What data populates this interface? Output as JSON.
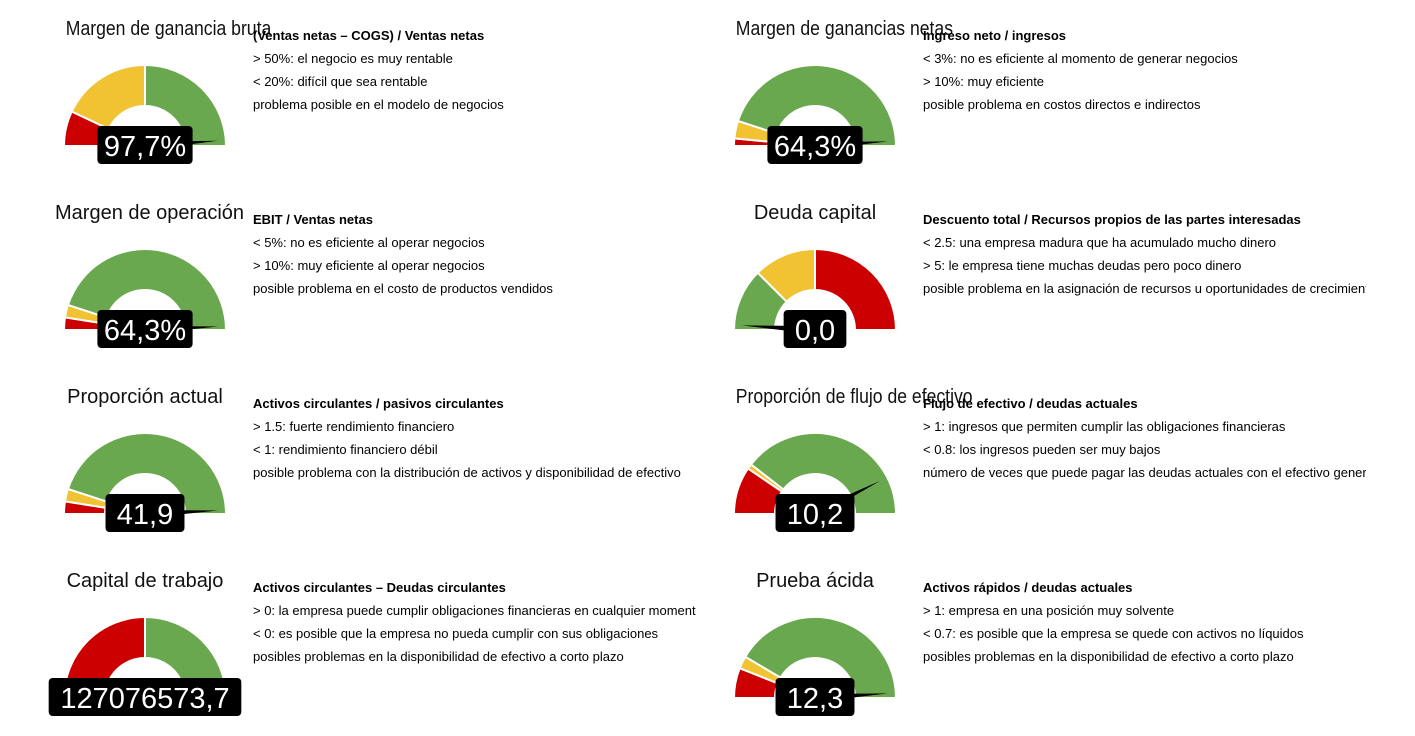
{
  "colors": {
    "green": "#6aa84f",
    "yellow": "#f1c232",
    "red": "#cc0000",
    "label_bg": "#000000",
    "label_text": "#ffffff"
  },
  "chart_data": [
    {
      "type": "gauge",
      "title": "Margen de ganancia bruta",
      "value": 97.7,
      "value_label": "97,7%",
      "bands": [
        {
          "color": "red",
          "share": 0.14
        },
        {
          "color": "yellow",
          "share": 0.36
        },
        {
          "color": "green",
          "share": 0.5
        }
      ],
      "needle_fraction": 0.977,
      "description": {
        "formula": "(Ventas netas  – COGS) / Ventas netas",
        "lines": [
          "> 50%: el negocio es muy rentable",
          "< 20%: difícil que sea rentable",
          "problema posible en el modelo de negocios"
        ]
      }
    },
    {
      "type": "gauge",
      "title": "Margen de ganancias netas",
      "value": 64.3,
      "value_label": "64,3%",
      "bands": [
        {
          "color": "red",
          "share": 0.03
        },
        {
          "color": "yellow",
          "share": 0.07
        },
        {
          "color": "green",
          "share": 0.9
        }
      ],
      "needle_fraction": 0.98,
      "description": {
        "formula": "Ingreso neto / ingresos",
        "lines": [
          "< 3%: no es eficiente al momento de generar negocios",
          "> 10%: muy eficiente",
          "posible problema en costos directos e indirectos"
        ]
      }
    },
    {
      "type": "gauge",
      "title": "Margen de operación",
      "value": 64.3,
      "value_label": "64,3%",
      "bands": [
        {
          "color": "red",
          "share": 0.05
        },
        {
          "color": "yellow",
          "share": 0.05
        },
        {
          "color": "green",
          "share": 0.9
        }
      ],
      "needle_fraction": 0.985,
      "description": {
        "formula": "EBIT / Ventas netas",
        "lines": [
          "< 5%: no es eficiente al operar negocios",
          "> 10%: muy eficiente al operar negocios",
          "posible problema en el costo de productos vendidos"
        ]
      }
    },
    {
      "type": "gauge",
      "title": "Deuda capital",
      "value": 0.0,
      "value_label": "0,0",
      "bands": [
        {
          "color": "green",
          "share": 0.25
        },
        {
          "color": "yellow",
          "share": 0.25
        },
        {
          "color": "red",
          "share": 0.5
        }
      ],
      "needle_fraction": 0.02,
      "description": {
        "formula": "Descuento total / Recursos propios de las partes interesadas",
        "lines": [
          "< 2.5: una empresa madura que ha acumulado mucho dinero",
          "> 5: le empresa tiene muchas deudas pero poco dinero",
          "posible problema en la asignación de recursos u oportunidades de crecimiento"
        ]
      }
    },
    {
      "type": "gauge",
      "title": "Proporción actual",
      "value": 41.9,
      "value_label": "41,9",
      "bands": [
        {
          "color": "red",
          "share": 0.05
        },
        {
          "color": "yellow",
          "share": 0.05
        },
        {
          "color": "green",
          "share": 0.9
        }
      ],
      "needle_fraction": 0.985,
      "description": {
        "formula": "Activos circulantes / pasivos circulantes",
        "lines": [
          "> 1.5: fuerte rendimiento financiero",
          "< 1: rendimiento financiero débil",
          "posible problema con la distribución de activos y disponibilidad de efectivo"
        ]
      }
    },
    {
      "type": "gauge",
      "title": "Proporción de flujo de efectivo",
      "value": 10.2,
      "value_label": "10,2",
      "bands": [
        {
          "color": "red",
          "share": 0.19
        },
        {
          "color": "yellow",
          "share": 0.02
        },
        {
          "color": "green",
          "share": 0.79
        }
      ],
      "needle_fraction": 0.85,
      "description": {
        "formula": "Flujo de efectivo / deudas actuales",
        "lines": [
          "> 1: ingresos que permiten cumplir las obligaciones financieras",
          "< 0.8: los ingresos pueden ser muy bajos",
          "número de veces que puede pagar las deudas actuales con el efectivo generado"
        ]
      }
    },
    {
      "type": "gauge",
      "title": "Capital de trabajo",
      "value": 127076573.7,
      "value_label": "127076573,7",
      "bands": [
        {
          "color": "red",
          "share": 0.5
        },
        {
          "color": "green",
          "share": 0.5
        }
      ],
      "needle_fraction": 1.0,
      "description": {
        "formula": "Activos circulantes – Deudas circulantes",
        "lines": [
          "> 0: la empresa puede cumplir obligaciones financieras en cualquier momento",
          "< 0: es posible que la empresa no pueda cumplir con sus obligaciones",
          "posibles problemas en la disponibilidad de efectivo a corto plazo"
        ]
      }
    },
    {
      "type": "gauge",
      "title": "Prueba ácida",
      "value": 12.3,
      "value_label": "12,3",
      "bands": [
        {
          "color": "red",
          "share": 0.12
        },
        {
          "color": "yellow",
          "share": 0.05
        },
        {
          "color": "green",
          "share": 0.83
        }
      ],
      "needle_fraction": 0.98,
      "description": {
        "formula": "Activos rápidos / deudas actuales",
        "lines": [
          "> 1: empresa en una posición muy solvente",
          "< 0.7: es posible que la empresa se quede con activos no líquidos",
          "posibles problemas en la disponibilidad de efectivo a corto plazo"
        ]
      }
    }
  ]
}
